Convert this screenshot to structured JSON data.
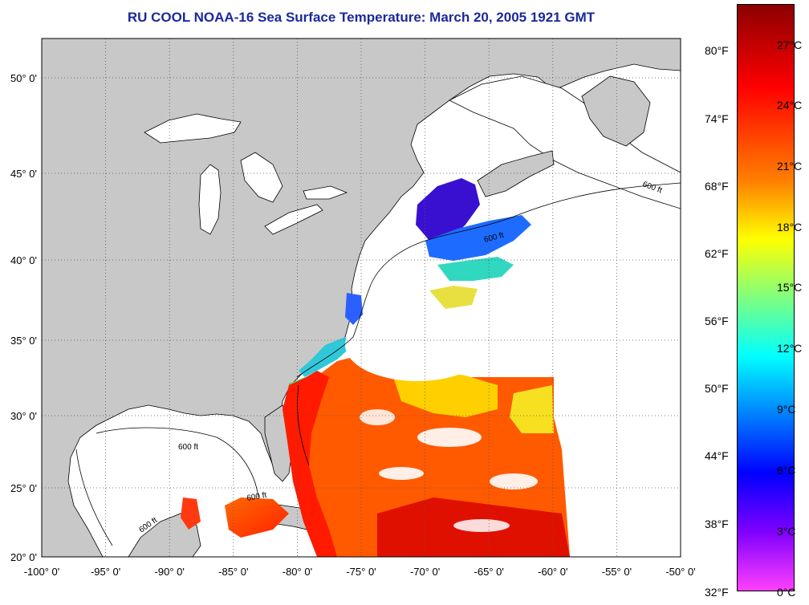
{
  "title": "RU COOL  NOAA-16  Sea Surface Temperature:  March 20, 2005 1921 GMT",
  "axes": {
    "lat_labels": [
      "50° 0'",
      "45° 0'",
      "40° 0'",
      "35° 0'",
      "30° 0'",
      "25° 0'",
      "20° 0'"
    ],
    "lon_labels": [
      "-100° 0'",
      "-95° 0'",
      "-90° 0'",
      "-85° 0'",
      "-80° 0'",
      "-75° 0'",
      "-70° 0'",
      "-65° 0'",
      "-60° 0'",
      "-55° 0'",
      "-50° 0'"
    ]
  },
  "depth_contour_label": "600 ft",
  "colorbar": {
    "fahrenheit_labels": [
      "80°F",
      "74°F",
      "68°F",
      "62°F",
      "56°F",
      "50°F",
      "44°F",
      "38°F",
      "32°F"
    ],
    "celsius_labels": [
      "27°C",
      "24°C",
      "21°C",
      "18°C",
      "15°C",
      "12°C",
      "9°C",
      "6°C",
      "3°C",
      "0°C"
    ],
    "colors": [
      "#8b0000",
      "#ff0000",
      "#ff7f00",
      "#ffff00",
      "#00ffff",
      "#0000ff",
      "#7f00ff",
      "#ff40ff"
    ]
  },
  "colors": {
    "land": "#c8c8c8",
    "ocean_cloud": "#ffffff",
    "title": "#1a2a9a"
  }
}
